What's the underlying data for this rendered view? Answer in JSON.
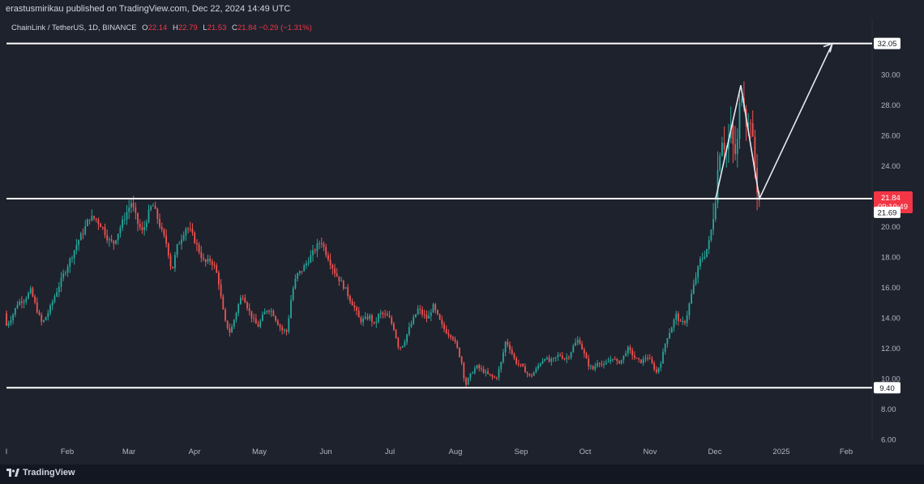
{
  "header": {
    "publish_line": "erastusmirikau published on TradingView.com, Dec 22, 2024 14:49 UTC"
  },
  "legend": {
    "symbol": "ChainLink / TetherUS, 1D, BINANCE",
    "open_label": "O",
    "open": "22.14",
    "high_label": "H",
    "high": "22.79",
    "low_label": "L",
    "low": "21.53",
    "close_label": "C",
    "close": "21.84",
    "change": "−0.29 (−1.31%)"
  },
  "chart_data": {
    "type": "candlestick",
    "x_ticks": [
      "Feb",
      "Mar",
      "Apr",
      "May",
      "Jun",
      "Jul",
      "Aug",
      "Sep",
      "Oct",
      "Nov",
      "Dec",
      "2025",
      "Feb"
    ],
    "y_ticks": [
      "6.00",
      "8.00",
      "10.00",
      "12.00",
      "14.00",
      "16.00",
      "18.00",
      "20.00",
      "22.00",
      "24.00",
      "26.00",
      "28.00",
      "30.00"
    ],
    "ylim": [
      5.2,
      34.2
    ],
    "horizontal_levels": [
      {
        "label": "32.05",
        "value": 32.05
      },
      {
        "label": "21.84",
        "value": 21.84
      },
      {
        "label": "9.40",
        "value": 9.4
      }
    ],
    "price_tags": [
      {
        "label": "21.84",
        "sublabel": "09:10:49",
        "value": 21.84,
        "color": "#f23645"
      },
      {
        "label": "21.69",
        "value": 21.69,
        "color": "#ffffff"
      }
    ],
    "price_path": [
      [
        0,
        14.3
      ],
      [
        8,
        13.5
      ],
      [
        15,
        14.1
      ],
      [
        22,
        15.0
      ],
      [
        30,
        15.2
      ],
      [
        38,
        15.8
      ],
      [
        45,
        14.6
      ],
      [
        52,
        13.6
      ],
      [
        60,
        14.4
      ],
      [
        68,
        15.5
      ],
      [
        78,
        16.8
      ],
      [
        88,
        18.0
      ],
      [
        96,
        19.0
      ],
      [
        104,
        19.8
      ],
      [
        110,
        20.6
      ],
      [
        118,
        20.5
      ],
      [
        126,
        20.0
      ],
      [
        134,
        19.1
      ],
      [
        140,
        18.9
      ],
      [
        148,
        19.9
      ],
      [
        156,
        20.9
      ],
      [
        162,
        21.6
      ],
      [
        170,
        20.2
      ],
      [
        176,
        19.6
      ],
      [
        182,
        20.7
      ],
      [
        188,
        21.5
      ],
      [
        194,
        20.6
      ],
      [
        200,
        19.6
      ],
      [
        206,
        18.8
      ],
      [
        212,
        17.0
      ],
      [
        218,
        18.6
      ],
      [
        224,
        19.3
      ],
      [
        230,
        20.0
      ],
      [
        236,
        19.6
      ],
      [
        244,
        18.6
      ],
      [
        252,
        17.6
      ],
      [
        260,
        17.8
      ],
      [
        266,
        17.2
      ],
      [
        270,
        16.3
      ],
      [
        274,
        14.8
      ],
      [
        278,
        13.7
      ],
      [
        284,
        13.0
      ],
      [
        290,
        14.1
      ],
      [
        296,
        15.2
      ],
      [
        300,
        15.5
      ],
      [
        306,
        14.6
      ],
      [
        312,
        13.9
      ],
      [
        318,
        13.4
      ],
      [
        324,
        14.1
      ],
      [
        330,
        14.6
      ],
      [
        336,
        14.4
      ],
      [
        342,
        13.7
      ],
      [
        348,
        13.2
      ],
      [
        354,
        13.1
      ],
      [
        360,
        15.6
      ],
      [
        366,
        16.8
      ],
      [
        372,
        17.1
      ],
      [
        378,
        17.6
      ],
      [
        384,
        18.1
      ],
      [
        390,
        18.6
      ],
      [
        396,
        19.1
      ],
      [
        402,
        18.3
      ],
      [
        408,
        17.6
      ],
      [
        414,
        16.9
      ],
      [
        420,
        16.4
      ],
      [
        426,
        15.9
      ],
      [
        432,
        15.2
      ],
      [
        438,
        14.6
      ],
      [
        444,
        13.8
      ],
      [
        450,
        13.9
      ],
      [
        456,
        14.1
      ],
      [
        462,
        13.5
      ],
      [
        468,
        14.3
      ],
      [
        474,
        14.2
      ],
      [
        480,
        14.0
      ],
      [
        486,
        13.3
      ],
      [
        492,
        12.0
      ],
      [
        498,
        12.3
      ],
      [
        504,
        13.2
      ],
      [
        510,
        13.9
      ],
      [
        516,
        14.6
      ],
      [
        522,
        14.2
      ],
      [
        528,
        13.9
      ],
      [
        534,
        14.8
      ],
      [
        540,
        14.1
      ],
      [
        546,
        13.4
      ],
      [
        552,
        13.0
      ],
      [
        558,
        12.8
      ],
      [
        564,
        12.0
      ],
      [
        570,
        11.0
      ],
      [
        574,
        9.5
      ],
      [
        578,
        10.0
      ],
      [
        582,
        10.4
      ],
      [
        588,
        10.8
      ],
      [
        596,
        10.5
      ],
      [
        604,
        10.2
      ],
      [
        612,
        10.0
      ],
      [
        618,
        11.0
      ],
      [
        624,
        12.5
      ],
      [
        630,
        11.9
      ],
      [
        636,
        11.1
      ],
      [
        642,
        10.9
      ],
      [
        648,
        10.5
      ],
      [
        654,
        10.1
      ],
      [
        660,
        10.5
      ],
      [
        666,
        11.0
      ],
      [
        672,
        11.4
      ],
      [
        678,
        11.1
      ],
      [
        684,
        11.3
      ],
      [
        690,
        11.6
      ],
      [
        696,
        11.3
      ],
      [
        702,
        11.5
      ],
      [
        708,
        12.2
      ],
      [
        714,
        12.6
      ],
      [
        720,
        11.7
      ],
      [
        726,
        10.9
      ],
      [
        732,
        10.6
      ],
      [
        738,
        11.2
      ],
      [
        744,
        10.8
      ],
      [
        750,
        11.1
      ],
      [
        756,
        11.4
      ],
      [
        762,
        11.0
      ],
      [
        768,
        11.3
      ],
      [
        774,
        12.0
      ],
      [
        780,
        11.6
      ],
      [
        786,
        11.2
      ],
      [
        792,
        11.1
      ],
      [
        798,
        11.5
      ],
      [
        804,
        11.0
      ],
      [
        810,
        10.4
      ],
      [
        816,
        11.2
      ],
      [
        822,
        12.6
      ],
      [
        828,
        13.3
      ],
      [
        834,
        14.2
      ],
      [
        840,
        13.6
      ],
      [
        846,
        13.8
      ],
      [
        852,
        15.3
      ],
      [
        858,
        16.6
      ],
      [
        864,
        17.8
      ],
      [
        870,
        18.2
      ],
      [
        876,
        19.2
      ],
      [
        882,
        21.6
      ],
      [
        886,
        24.0
      ],
      [
        890,
        26.0
      ],
      [
        896,
        25.0
      ],
      [
        902,
        26.4
      ],
      [
        906,
        24.5
      ],
      [
        910,
        25.6
      ],
      [
        914,
        29.2
      ],
      [
        918,
        28.2
      ],
      [
        922,
        26.4
      ],
      [
        926,
        27.2
      ],
      [
        930,
        24.6
      ],
      [
        934,
        22.6
      ],
      [
        937,
        21.84
      ]
    ],
    "drawn_path_values": [
      21.84,
      29.3,
      21.84,
      32.05
    ]
  },
  "footer": {
    "brand": "TradingView"
  },
  "colors": {
    "up": "#26a69a",
    "down": "#ef5350",
    "background": "#1e222d",
    "text": "#d1d4dc",
    "red_tag": "#f23645"
  }
}
